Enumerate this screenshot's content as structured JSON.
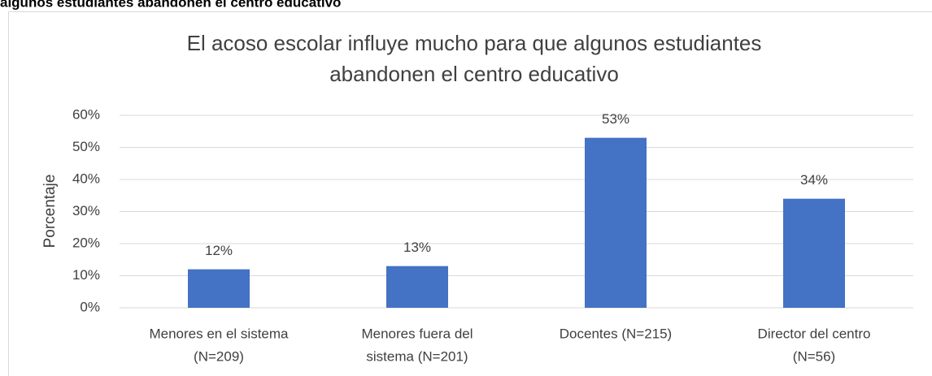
{
  "heading": "algunos estudiantes abandonen el centro educativo",
  "chart_data": {
    "type": "bar",
    "title": [
      "El acoso escolar influye mucho para que algunos estudiantes",
      "abandonen el centro educativo"
    ],
    "y_label": "Porcentaje",
    "categories": [
      [
        "Menores en el sistema",
        "(N=209)"
      ],
      [
        "Menores fuera del",
        "sistema (N=201)"
      ],
      [
        "Docentes (N=215)"
      ],
      [
        "Director del centro",
        "(N=56)"
      ]
    ],
    "values": [
      12,
      13,
      53,
      34
    ],
    "value_labels": [
      "12%",
      "13%",
      "53%",
      "34%"
    ],
    "color": "#4472c4",
    "ylim": [
      0,
      60
    ],
    "yticks": [
      {
        "value": 0,
        "label": "0%"
      },
      {
        "value": 10,
        "label": "10%"
      },
      {
        "value": 20,
        "label": "20%"
      },
      {
        "value": 30,
        "label": "30%"
      },
      {
        "value": 40,
        "label": "40%"
      },
      {
        "value": 50,
        "label": "50%"
      },
      {
        "value": 60,
        "label": "60%"
      }
    ],
    "grid": true
  }
}
